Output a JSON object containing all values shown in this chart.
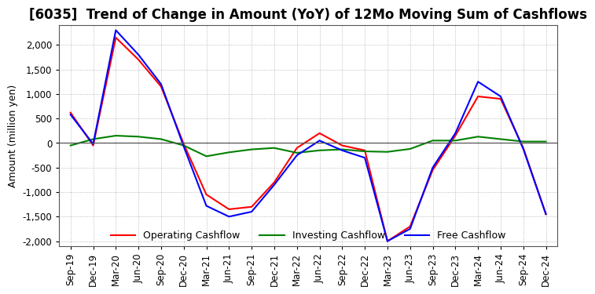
{
  "title": "[6035]  Trend of Change in Amount (YoY) of 12Mo Moving Sum of Cashflows",
  "ylabel": "Amount (million yen)",
  "ylim": [
    -2100,
    2400
  ],
  "yticks": [
    -2000,
    -1500,
    -1000,
    -500,
    0,
    500,
    1000,
    1500,
    2000
  ],
  "x_labels": [
    "Sep-19",
    "Dec-19",
    "Mar-20",
    "Jun-20",
    "Sep-20",
    "Dec-20",
    "Mar-21",
    "Jun-21",
    "Sep-21",
    "Dec-21",
    "Mar-22",
    "Jun-22",
    "Sep-22",
    "Dec-22",
    "Mar-23",
    "Jun-23",
    "Sep-23",
    "Dec-23",
    "Mar-24",
    "Jun-24",
    "Sep-24",
    "Dec-24"
  ],
  "operating": [
    620,
    -50,
    2150,
    1700,
    1150,
    -20,
    -1050,
    -1350,
    -1300,
    -800,
    -100,
    200,
    -50,
    -150,
    -2000,
    -1700,
    -550,
    150,
    950,
    900,
    -100,
    -1450
  ],
  "investing": [
    -50,
    80,
    150,
    130,
    80,
    -50,
    -270,
    -190,
    -130,
    -100,
    -200,
    -150,
    -130,
    -170,
    -180,
    -120,
    50,
    50,
    130,
    80,
    30,
    30
  ],
  "free": [
    580,
    -20,
    2300,
    1800,
    1200,
    -70,
    -1280,
    -1500,
    -1400,
    -850,
    -250,
    50,
    -150,
    -300,
    -2000,
    -1750,
    -500,
    200,
    1250,
    950,
    -120,
    -1450
  ],
  "operating_color": "#ff0000",
  "investing_color": "#008000",
  "free_color": "#0000ff",
  "background_color": "#ffffff",
  "grid_color": "#aaaaaa",
  "title_fontsize": 12,
  "label_fontsize": 9,
  "tick_fontsize": 8.5
}
